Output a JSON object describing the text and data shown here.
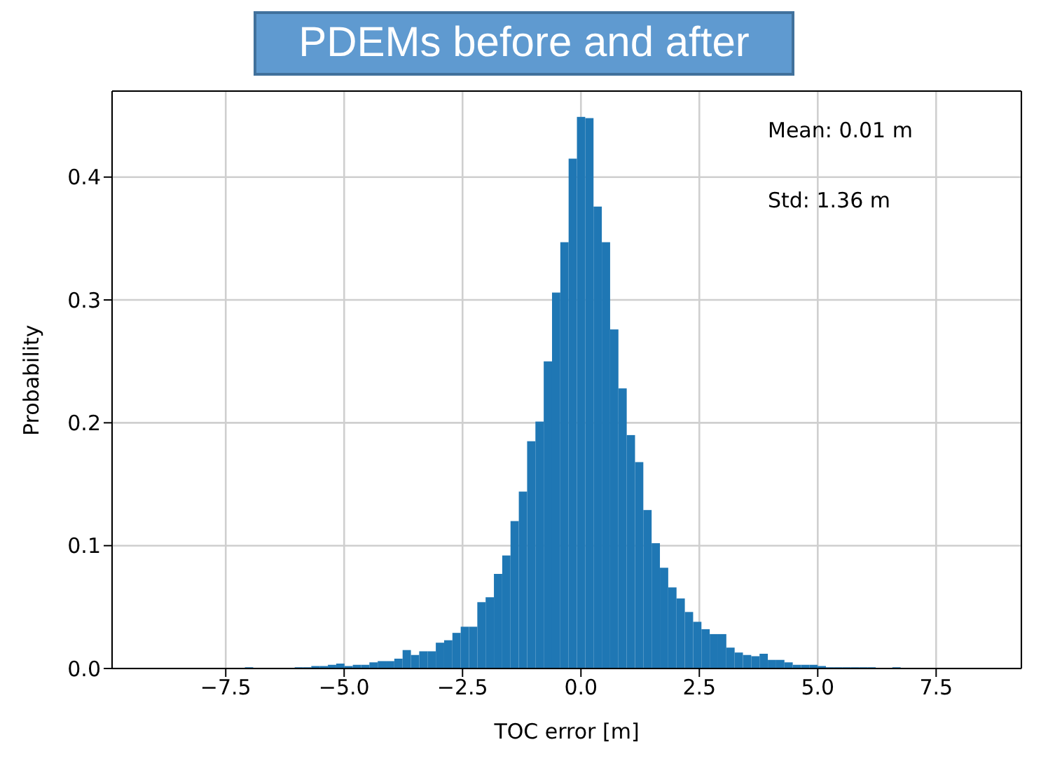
{
  "chart_data": {
    "type": "histogram",
    "title": "PDEMs before and after",
    "xlabel": "TOC error [m]",
    "ylabel": "Probability",
    "annotations": [
      "Mean: 0.01 m",
      "Std: 1.36 m"
    ],
    "bins": [
      -9.2,
      -9.025,
      -8.85,
      -8.675,
      -8.5,
      -8.325,
      -8.15,
      -7.975,
      -7.8,
      -7.625,
      -7.45,
      -7.275,
      -7.1,
      -6.925,
      -6.75,
      -6.575,
      -6.4,
      -6.225,
      -6.05,
      -5.875,
      -5.7,
      -5.525,
      -5.35,
      -5.175,
      -5.0,
      -4.825,
      -4.65,
      -4.475,
      -4.3,
      -4.125,
      -3.95,
      -3.775,
      -3.6,
      -3.425,
      -3.25,
      -3.075,
      -2.9,
      -2.725,
      -2.55,
      -2.375,
      -2.2,
      -2.025,
      -1.85,
      -1.675,
      -1.5,
      -1.325,
      -1.15,
      -0.975,
      -0.8,
      -0.625,
      -0.45,
      -0.275,
      -0.1,
      0.075,
      0.25,
      0.425,
      0.6,
      0.775,
      0.95,
      1.125,
      1.3,
      1.475,
      1.65,
      1.825,
      2.0,
      2.175,
      2.35,
      2.525,
      2.7,
      2.875,
      3.05,
      3.225,
      3.4,
      3.575,
      3.75,
      3.925,
      4.1,
      4.275,
      4.45,
      4.625,
      4.8,
      4.975,
      5.15,
      5.325,
      5.5,
      5.675,
      5.85,
      6.025,
      6.2,
      6.375,
      6.55,
      6.725,
      6.9,
      7.075,
      7.25,
      7.425,
      7.6,
      7.775,
      7.95,
      8.125,
      8.3
    ],
    "values": [
      0,
      0,
      0,
      0,
      0,
      0,
      0,
      0,
      0,
      0,
      0,
      0,
      0.001,
      0,
      0,
      0,
      0,
      0,
      0.001,
      0.001,
      0.002,
      0.002,
      0.003,
      0.004,
      0.002,
      0.003,
      0.003,
      0.005,
      0.006,
      0.006,
      0.008,
      0.015,
      0.011,
      0.014,
      0.014,
      0.021,
      0.023,
      0.029,
      0.034,
      0.034,
      0.054,
      0.058,
      0.077,
      0.092,
      0.12,
      0.144,
      0.185,
      0.201,
      0.25,
      0.306,
      0.347,
      0.415,
      0.449,
      0.448,
      0.376,
      0.347,
      0.276,
      0.228,
      0.19,
      0.168,
      0.129,
      0.102,
      0.082,
      0.066,
      0.057,
      0.046,
      0.038,
      0.032,
      0.028,
      0.028,
      0.017,
      0.013,
      0.011,
      0.01,
      0.012,
      0.007,
      0.007,
      0.005,
      0.003,
      0.003,
      0.003,
      0.002,
      0.001,
      0.001,
      0.001,
      0.001,
      0.001,
      0.001,
      0,
      0,
      0.001,
      0,
      0,
      0,
      0,
      0,
      0,
      0,
      0,
      0
    ],
    "color": "#1f77b4",
    "xlim": [
      -9.9,
      9.3
    ],
    "xticks": [
      {
        "value": -7.5,
        "label": "−7.5"
      },
      {
        "value": -5,
        "label": "−5.0"
      },
      {
        "value": -2.5,
        "label": "−2.5"
      },
      {
        "value": 0,
        "label": "0.0"
      },
      {
        "value": 2.5,
        "label": "2.5"
      },
      {
        "value": 5,
        "label": "5.0"
      },
      {
        "value": 7.5,
        "label": "7.5"
      }
    ],
    "ylim": [
      0,
      0.47
    ],
    "yticks": [
      {
        "value": 0,
        "label": "0.0"
      },
      0.1,
      0.2,
      0.3,
      0.4
    ],
    "grid": true
  }
}
